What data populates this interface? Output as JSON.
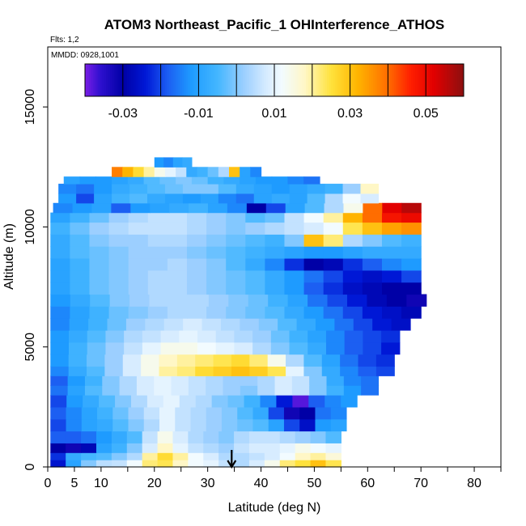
{
  "chart_data": {
    "type": "heatmap",
    "title": "ATOM3 Northeast_Pacific_1 OHInterference_ATHOS",
    "subtitle_flights": "Flts: 1,2",
    "subtitle_dates": "MMDD: 0928,1001",
    "xlabel": "Latitude (deg N)",
    "ylabel": "Altitude (m)",
    "xlim": [
      0,
      85
    ],
    "ylim": [
      0,
      17500
    ],
    "x_ticks": [
      0,
      5,
      10,
      15,
      20,
      25,
      30,
      35,
      40,
      45,
      50,
      55,
      60,
      65,
      70,
      75,
      80,
      85
    ],
    "x_tick_labels": [
      "0",
      "5",
      "10",
      "",
      "20",
      "",
      "30",
      "",
      "40",
      "",
      "50",
      "",
      "60",
      "",
      "70",
      "",
      "80",
      ""
    ],
    "y_ticks": [
      0,
      5000,
      10000,
      15000
    ],
    "y_tick_labels": [
      "0",
      "5000",
      "10000",
      "15000"
    ],
    "colorbar": {
      "min": -0.04,
      "max": 0.06,
      "tick_values": [
        -0.03,
        -0.01,
        0.01,
        0.03,
        0.05
      ],
      "tick_labels": [
        "-0.03",
        "-0.01",
        "0.01",
        "0.03",
        "0.05"
      ],
      "divider_values": [
        -0.04,
        -0.03,
        -0.02,
        -0.01,
        0.0,
        0.01,
        0.02,
        0.03,
        0.04,
        0.05,
        0.06
      ],
      "stops": [
        {
          "v": -0.04,
          "color": "#7a1ee6"
        },
        {
          "v": -0.036,
          "color": "#2f10cf"
        },
        {
          "v": -0.03,
          "color": "#0000a6"
        },
        {
          "v": -0.024,
          "color": "#0018d6"
        },
        {
          "v": -0.018,
          "color": "#1c5ff2"
        },
        {
          "v": -0.012,
          "color": "#1e9bff"
        },
        {
          "v": -0.005,
          "color": "#44b6ff"
        },
        {
          "v": 0.002,
          "color": "#9ccfff"
        },
        {
          "v": 0.008,
          "color": "#d7ecff"
        },
        {
          "v": 0.012,
          "color": "#f2fbff"
        },
        {
          "v": 0.018,
          "color": "#fff7c6"
        },
        {
          "v": 0.025,
          "color": "#ffe23c"
        },
        {
          "v": 0.032,
          "color": "#ffb400"
        },
        {
          "v": 0.04,
          "color": "#ff6d00"
        },
        {
          "v": 0.046,
          "color": "#ff1f00"
        },
        {
          "v": 0.052,
          "color": "#e20000"
        },
        {
          "v": 0.06,
          "color": "#8c1010"
        }
      ]
    },
    "arrow_marker_x": 34.5,
    "rows": [
      {
        "y0": 0,
        "y1": 300,
        "x0": 0.5,
        "x1": 55,
        "values": [
          -0.025,
          -0.01,
          0.0,
          0.005,
          0.006,
          0.012,
          0.022,
          0.024,
          0.018,
          0.012,
          0.01,
          0.006,
          0.004,
          0.008,
          0.014,
          0.022,
          0.025,
          0.03,
          0.024
        ]
      },
      {
        "y0": 300,
        "y1": 600,
        "x0": 0.5,
        "x1": 55,
        "values": [
          -0.022,
          -0.008,
          -0.005,
          -0.004,
          0.0,
          0.004,
          0.02,
          0.026,
          0.02,
          0.012,
          0.008,
          0.004,
          0.004,
          0.006,
          0.008,
          0.012,
          0.018,
          0.02,
          0.016
        ]
      },
      {
        "y0": 600,
        "y1": 1000,
        "x0": 0.5,
        "x1": 55,
        "values": [
          -0.03,
          -0.032,
          -0.028,
          -0.01,
          -0.006,
          0.0,
          0.008,
          0.018,
          0.01,
          0.006,
          0.004,
          0.002,
          0.006,
          0.008,
          0.008,
          0.01,
          0.014,
          0.012,
          0.01
        ]
      },
      {
        "y0": 1000,
        "y1": 1500,
        "x0": 0.5,
        "x1": 55,
        "values": [
          -0.018,
          -0.018,
          -0.016,
          -0.012,
          -0.008,
          -0.004,
          0.006,
          0.014,
          0.008,
          0.004,
          0.002,
          0.0,
          0.004,
          0.006,
          0.006,
          0.004,
          0.002,
          0.0,
          -0.004
        ]
      },
      {
        "y0": 1500,
        "y1": 2000,
        "x0": 0.5,
        "x1": 56,
        "values": [
          -0.02,
          -0.014,
          -0.01,
          -0.008,
          -0.004,
          0.0,
          0.004,
          0.01,
          0.006,
          0.004,
          0.002,
          0.0,
          -0.002,
          -0.004,
          -0.01,
          -0.02,
          -0.026,
          -0.012,
          -0.01
        ]
      },
      {
        "y0": 2000,
        "y1": 2500,
        "x0": 0.5,
        "x1": 56,
        "values": [
          -0.018,
          -0.014,
          -0.01,
          -0.006,
          -0.002,
          0.002,
          0.006,
          0.01,
          0.006,
          0.004,
          0.002,
          0.0,
          -0.004,
          -0.008,
          -0.02,
          -0.032,
          -0.03,
          -0.016,
          -0.014
        ]
      },
      {
        "y0": 2500,
        "y1": 3000,
        "x0": 0.5,
        "x1": 58,
        "values": [
          -0.02,
          -0.012,
          -0.008,
          -0.004,
          0.0,
          0.004,
          0.008,
          0.01,
          0.006,
          0.004,
          0.0,
          -0.002,
          -0.006,
          -0.014,
          -0.024,
          -0.038,
          -0.018,
          -0.014,
          -0.012
        ]
      },
      {
        "y0": 3000,
        "y1": 3400,
        "x0": 0.5,
        "x1": 62,
        "values": [
          -0.016,
          -0.01,
          -0.004,
          0.0,
          0.004,
          0.008,
          0.01,
          0.008,
          0.006,
          0.004,
          0.002,
          0.0,
          0.004,
          0.008,
          0.006,
          0.0,
          -0.006,
          -0.012,
          -0.016
        ]
      },
      {
        "y0": 3400,
        "y1": 3800,
        "x0": 0.5,
        "x1": 62,
        "values": [
          -0.018,
          -0.012,
          -0.006,
          0.0,
          0.004,
          0.008,
          0.01,
          0.008,
          0.006,
          0.004,
          0.002,
          0.002,
          0.004,
          0.008,
          0.006,
          0.0,
          -0.008,
          -0.014,
          -0.016
        ]
      },
      {
        "y0": 3800,
        "y1": 4200,
        "x0": 0.5,
        "x1": 65,
        "values": [
          -0.014,
          -0.008,
          -0.004,
          0.002,
          0.008,
          0.014,
          0.02,
          0.022,
          0.026,
          0.028,
          0.03,
          0.028,
          0.024,
          0.01,
          0.0,
          -0.008,
          -0.014,
          -0.018,
          -0.02
        ]
      },
      {
        "y0": 4200,
        "y1": 4700,
        "x0": 0.5,
        "x1": 65,
        "values": [
          -0.012,
          -0.006,
          -0.002,
          0.002,
          0.008,
          0.014,
          0.018,
          0.02,
          0.022,
          0.024,
          0.026,
          0.022,
          0.014,
          0.004,
          -0.004,
          -0.01,
          -0.016,
          -0.02,
          -0.022
        ]
      },
      {
        "y0": 4700,
        "y1": 5200,
        "x0": 0.5,
        "x1": 66,
        "values": [
          -0.012,
          -0.006,
          -0.002,
          0.002,
          0.006,
          0.01,
          0.014,
          0.014,
          0.012,
          0.01,
          0.008,
          0.004,
          0.0,
          -0.004,
          -0.008,
          -0.014,
          -0.018,
          -0.02,
          -0.024
        ]
      },
      {
        "y0": 5200,
        "y1": 5700,
        "x0": 0.5,
        "x1": 66,
        "values": [
          -0.012,
          -0.008,
          -0.004,
          0.0,
          0.004,
          0.006,
          0.008,
          0.01,
          0.008,
          0.006,
          0.004,
          0.002,
          -0.002,
          -0.006,
          -0.01,
          -0.014,
          -0.018,
          -0.02,
          -0.022
        ]
      },
      {
        "y0": 5700,
        "y1": 6200,
        "x0": 0.5,
        "x1": 68,
        "values": [
          -0.014,
          -0.01,
          -0.006,
          -0.002,
          0.002,
          0.004,
          0.006,
          0.008,
          0.006,
          0.004,
          0.002,
          0.0,
          -0.004,
          -0.008,
          -0.012,
          -0.016,
          -0.02,
          -0.024,
          -0.026
        ]
      },
      {
        "y0": 6200,
        "y1": 6700,
        "x0": 0.5,
        "x1": 70,
        "values": [
          -0.014,
          -0.01,
          -0.006,
          -0.002,
          0.0,
          0.002,
          0.004,
          0.004,
          0.002,
          0.0,
          -0.002,
          -0.004,
          -0.008,
          -0.012,
          -0.016,
          -0.02,
          -0.024,
          -0.026,
          -0.028
        ]
      },
      {
        "y0": 6700,
        "y1": 7200,
        "x0": 0.5,
        "x1": 71,
        "values": [
          -0.012,
          -0.008,
          -0.004,
          0.0,
          0.002,
          0.004,
          0.004,
          0.004,
          0.002,
          0.0,
          -0.002,
          -0.006,
          -0.01,
          -0.016,
          -0.02,
          -0.024,
          -0.028,
          -0.03,
          -0.032
        ]
      },
      {
        "y0": 7200,
        "y1": 7700,
        "x0": 0.5,
        "x1": 70,
        "values": [
          -0.01,
          -0.006,
          -0.002,
          0.0,
          0.002,
          0.004,
          0.004,
          0.002,
          0.0,
          -0.002,
          -0.004,
          -0.008,
          -0.012,
          -0.018,
          -0.022,
          -0.026,
          -0.028,
          -0.03,
          -0.03
        ]
      },
      {
        "y0": 7700,
        "y1": 8200,
        "x0": 0.5,
        "x1": 70,
        "values": [
          -0.01,
          -0.006,
          -0.002,
          0.0,
          0.002,
          0.004,
          0.004,
          0.002,
          0.0,
          -0.002,
          -0.004,
          -0.008,
          -0.012,
          -0.016,
          -0.02,
          -0.024,
          -0.026,
          -0.024,
          -0.02
        ]
      },
      {
        "y0": 8200,
        "y1": 8700,
        "x0": 0.5,
        "x1": 70,
        "values": [
          -0.01,
          -0.006,
          -0.002,
          0.0,
          0.002,
          0.002,
          0.004,
          0.002,
          0.0,
          -0.004,
          -0.008,
          -0.014,
          -0.022,
          -0.03,
          -0.028,
          -0.022,
          -0.018,
          -0.014,
          -0.012
        ]
      },
      {
        "y0": 8700,
        "y1": 9200,
        "x0": 0.5,
        "x1": 70,
        "values": [
          -0.008,
          -0.004,
          -0.002,
          0.0,
          0.002,
          0.002,
          0.002,
          0.0,
          -0.002,
          -0.004,
          -0.006,
          -0.008,
          -0.01,
          -0.012,
          -0.012,
          -0.01,
          -0.008,
          -0.008,
          -0.008
        ]
      },
      {
        "y0": 9200,
        "y1": 9700,
        "x0": 0.5,
        "x1": 70,
        "values": [
          -0.008,
          -0.004,
          0.0,
          0.002,
          0.002,
          0.004,
          0.004,
          0.002,
          0.0,
          -0.002,
          -0.004,
          -0.006,
          0.0,
          0.03,
          0.022,
          0.004,
          0.0,
          -0.004,
          -0.006
        ]
      },
      {
        "y0": 9700,
        "y1": 10200,
        "x0": 0.5,
        "x1": 70,
        "values": [
          -0.006,
          -0.002,
          0.002,
          0.004,
          0.006,
          0.006,
          0.006,
          0.004,
          0.002,
          0.0,
          0.002,
          0.004,
          0.006,
          0.008,
          0.012,
          0.024,
          0.03,
          0.034,
          0.036
        ]
      },
      {
        "y0": 10200,
        "y1": 10600,
        "x0": 0.5,
        "x1": 70,
        "values": [
          -0.01,
          -0.006,
          -0.002,
          0.002,
          0.004,
          0.006,
          0.006,
          0.004,
          0.002,
          0.0,
          -0.004,
          -0.002,
          0.006,
          0.012,
          0.02,
          0.032,
          0.04,
          0.048,
          0.05
        ]
      },
      {
        "y0": 10600,
        "y1": 11000,
        "x0": 1,
        "x1": 70,
        "values": [
          -0.014,
          -0.012,
          -0.01,
          -0.018,
          -0.012,
          -0.01,
          -0.008,
          -0.006,
          -0.01,
          -0.014,
          -0.03,
          -0.02,
          -0.01,
          -0.004,
          0.004,
          0.014,
          0.04,
          0.052,
          0.056
        ]
      },
      {
        "y0": 11000,
        "y1": 11400,
        "x0": 2,
        "x1": 62,
        "values": [
          -0.012,
          -0.02,
          -0.01,
          -0.006,
          -0.004,
          -0.008,
          -0.01,
          -0.012,
          -0.01,
          -0.014,
          -0.016,
          -0.01,
          -0.008,
          -0.01,
          -0.004,
          0.004,
          0.012,
          0.008
        ]
      },
      {
        "y0": 11400,
        "y1": 11800,
        "x0": 2,
        "x1": 62,
        "values": [
          -0.014,
          -0.016,
          -0.012,
          -0.008,
          -0.006,
          -0.004,
          -0.002,
          0.0,
          0.0,
          -0.004,
          -0.008,
          -0.01,
          -0.012,
          -0.01,
          -0.008,
          -0.006,
          0.002,
          0.018
        ]
      },
      {
        "y0": 11800,
        "y1": 12100,
        "x0": 3,
        "x1": 51,
        "values": [
          -0.01,
          -0.012,
          -0.012,
          -0.01,
          -0.008,
          -0.004,
          -0.002,
          0.0,
          -0.002,
          -0.006,
          -0.008,
          -0.01,
          -0.012,
          -0.012,
          -0.014,
          -0.016
        ]
      },
      {
        "y0": 12100,
        "y1": 12500,
        "x0": 12,
        "x1": 40,
        "values": [
          0.038,
          0.032,
          0.026,
          0.02,
          0.014,
          0.01,
          0.006,
          -0.008,
          -0.006,
          -0.002,
          0.004,
          0.03,
          -0.01,
          -0.014
        ]
      },
      {
        "y0": 12500,
        "y1": 12900,
        "x0": 20,
        "x1": 27,
        "values": [
          -0.012,
          -0.014,
          -0.01,
          -0.008
        ]
      }
    ]
  }
}
